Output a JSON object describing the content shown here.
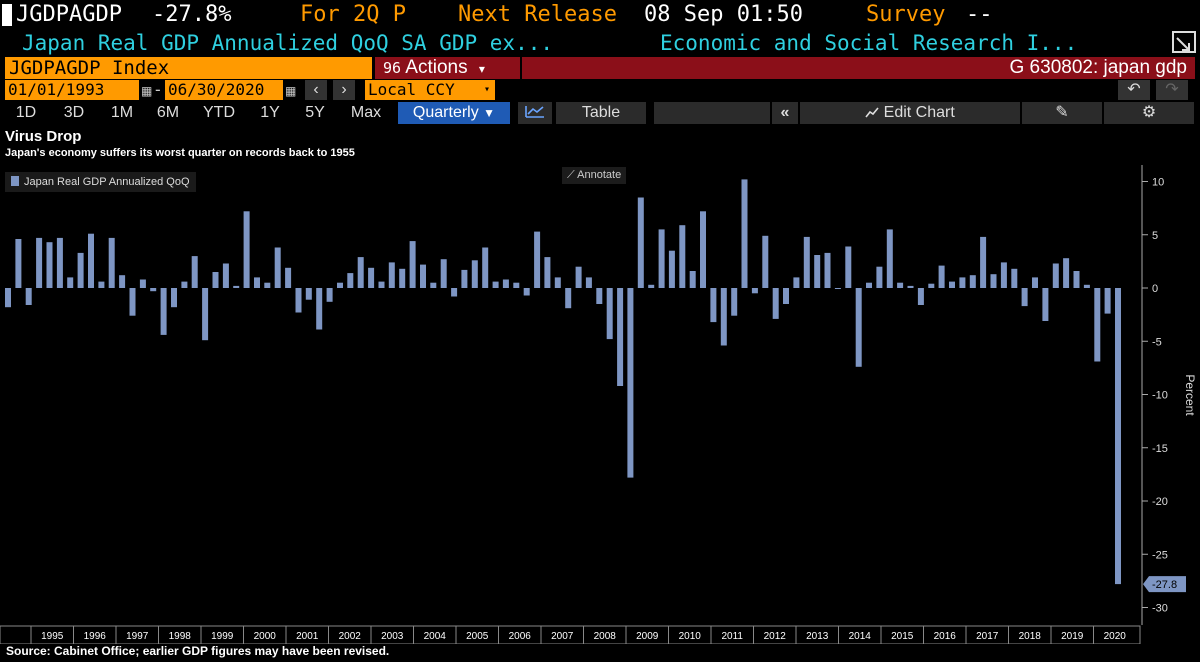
{
  "header": {
    "ticker": "JGDPAGDP",
    "value": "-27.8%",
    "period": "For 2Q P",
    "next_release_label": "Next Release",
    "next_release_value": "08 Sep 01:50",
    "survey_label": "Survey",
    "survey_value": "--",
    "description": "Japan Real GDP Annualized QoQ SA GDP ex...",
    "source_agency": "Economic and Social Research I...",
    "security": "JGDPAGDP Index",
    "actions_icon": "96",
    "actions_label": "Actions",
    "function": "G 630802: japan gdp"
  },
  "controls": {
    "start_date": "01/01/1993",
    "date_separator": "-",
    "end_date": "06/30/2020",
    "currency": "Local CCY",
    "range_buttons": [
      "1D",
      "3D",
      "1M",
      "6M",
      "YTD",
      "1Y",
      "5Y",
      "Max"
    ],
    "frequency": "Quarterly",
    "table_label": "Table",
    "edit_chart_label": "Edit Chart"
  },
  "footer": {
    "source": "Source: Cabinet Office; earlier GDP figures may have been revised."
  },
  "colors": {
    "bar": "#7e96c4",
    "accent_orange": "#ff9a00",
    "accent_cyan": "#2fd0e0",
    "accent_red": "#8b0f19",
    "selected_blue": "#1f5bb5"
  },
  "chart_data": {
    "type": "bar",
    "title": "Virus Drop",
    "subtitle": "Japan's economy suffers its worst quarter on records back to 1955",
    "legend": "Japan Real GDP Annualized QoQ",
    "annotate_label": "Annotate",
    "ylabel": "Percent",
    "ylim": [
      -31,
      11
    ],
    "yticks": [
      10,
      5,
      0,
      -5,
      -10,
      -15,
      -20,
      -25,
      -30
    ],
    "last_value_label": "-27.8",
    "years": [
      "1995",
      "1996",
      "1997",
      "1998",
      "1999",
      "2000",
      "2001",
      "2002",
      "2003",
      "2004",
      "2005",
      "2006",
      "2007",
      "2008",
      "2009",
      "2010",
      "2011",
      "2012",
      "2013",
      "2014",
      "2015",
      "2016",
      "2017",
      "2018",
      "2019",
      "2020"
    ],
    "start_quarter": "1994Q2",
    "values": [
      -1.8,
      4.6,
      -1.6,
      4.7,
      4.3,
      4.7,
      1.0,
      3.3,
      5.1,
      0.6,
      4.7,
      1.2,
      -2.6,
      0.8,
      -0.3,
      -4.4,
      -1.8,
      0.6,
      3.0,
      -4.9,
      1.5,
      2.3,
      0.2,
      7.2,
      1.0,
      0.5,
      3.8,
      1.9,
      -2.3,
      -1.1,
      -3.9,
      -1.3,
      0.5,
      1.4,
      2.9,
      1.9,
      0.6,
      2.4,
      1.8,
      4.4,
      2.2,
      0.5,
      2.7,
      -0.8,
      1.7,
      2.6,
      3.8,
      0.6,
      0.8,
      0.5,
      -0.7,
      5.3,
      2.9,
      1.0,
      -1.9,
      2.0,
      1.0,
      -1.5,
      -4.8,
      -9.2,
      -17.8,
      8.5,
      0.3,
      5.5,
      3.5,
      5.9,
      1.6,
      7.2,
      -3.2,
      -5.4,
      -2.6,
      10.2,
      -0.5,
      4.9,
      -2.9,
      -1.5,
      1.0,
      4.8,
      3.1,
      3.3,
      0.0,
      3.9,
      -7.4,
      0.5,
      2.0,
      5.5,
      0.5,
      0.2,
      -1.6,
      0.4,
      2.1,
      0.6,
      1.0,
      1.2,
      4.8,
      1.3,
      2.4,
      1.8,
      -1.7,
      1.0,
      -3.1,
      2.3,
      2.8,
      1.6,
      0.3,
      -6.9,
      -2.4,
      -27.8
    ]
  }
}
